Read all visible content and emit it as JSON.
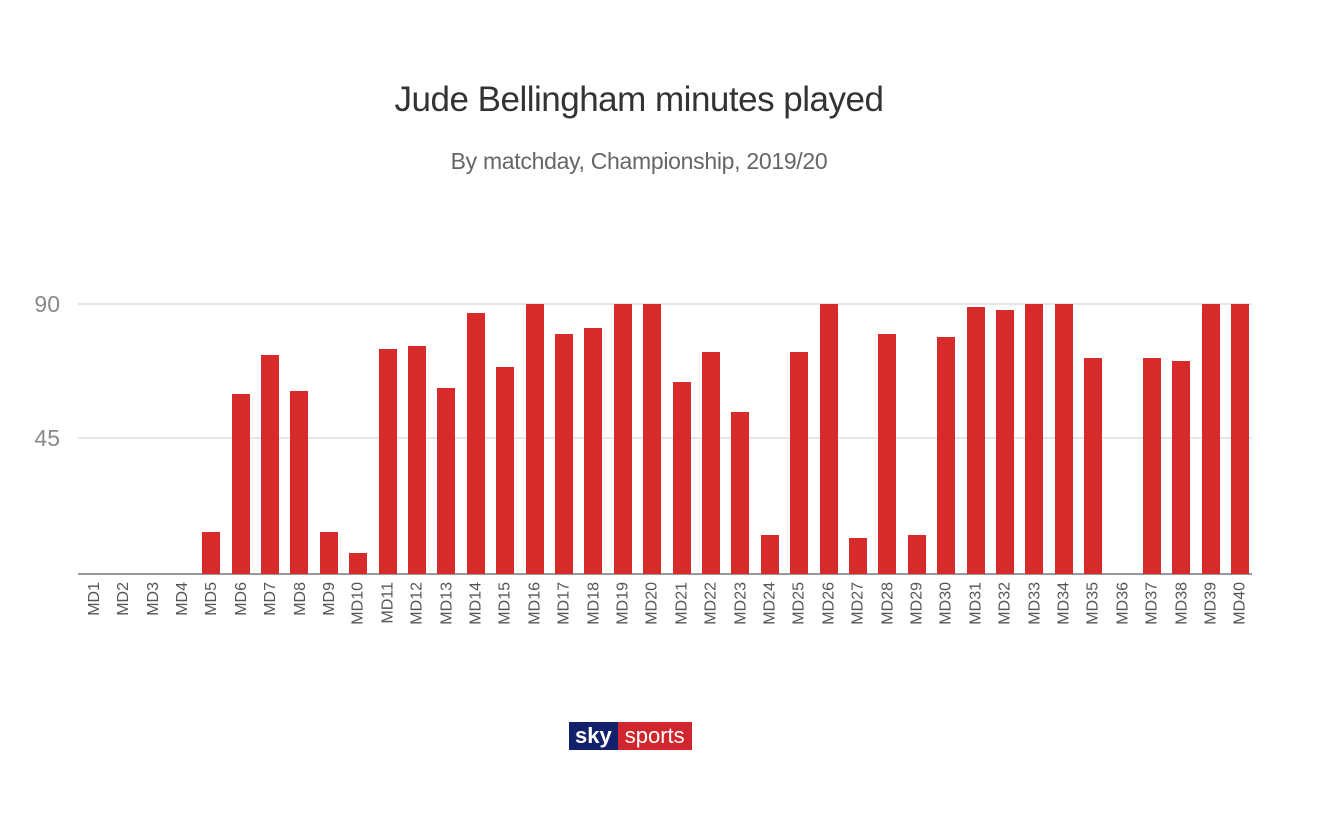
{
  "header": {
    "title": "Jude Bellingham minutes played",
    "subtitle": "By matchday, Championship, 2019/20"
  },
  "logo": {
    "sky": "sky",
    "sports": "sports"
  },
  "colors": {
    "bar": "#d72b2b",
    "logo_blue": "#13206b",
    "logo_red": "#d0262d"
  },
  "chart_data": {
    "type": "bar",
    "title": "Jude Bellingham minutes played",
    "subtitle": "By matchday, Championship, 2019/20",
    "xlabel": "",
    "ylabel": "",
    "ylim": [
      0,
      90
    ],
    "yticks": [
      45,
      90
    ],
    "grid": true,
    "legend": null,
    "categories": [
      "MD1",
      "MD2",
      "MD3",
      "MD4",
      "MD5",
      "MD6",
      "MD7",
      "MD8",
      "MD9",
      "MD10",
      "MD11",
      "MD12",
      "MD13",
      "MD14",
      "MD15",
      "MD16",
      "MD17",
      "MD18",
      "MD19",
      "MD20",
      "MD21",
      "MD22",
      "MD23",
      "MD24",
      "MD25",
      "MD26",
      "MD27",
      "MD28",
      "MD29",
      "MD30",
      "MD31",
      "MD32",
      "MD33",
      "MD34",
      "MD35",
      "MD36",
      "MD37",
      "MD38",
      "MD39",
      "MD40"
    ],
    "values": [
      0,
      0,
      0,
      0,
      14,
      60,
      73,
      61,
      14,
      7,
      75,
      76,
      62,
      87,
      69,
      90,
      80,
      82,
      90,
      90,
      64,
      74,
      54,
      13,
      74,
      90,
      12,
      80,
      13,
      79,
      89,
      88,
      90,
      90,
      72,
      0,
      72,
      71,
      90,
      90
    ]
  }
}
